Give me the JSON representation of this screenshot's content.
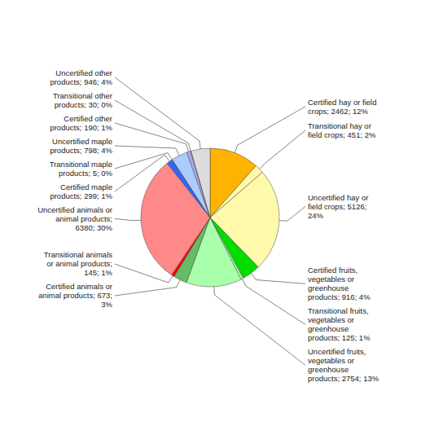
{
  "chart_data": {
    "type": "pie",
    "categories": [
      "Certified hay or field\ncrops; 2462; 12%",
      "Transitional hay or\nfield crops; 451; 2%",
      "Uncertified hay or\nfield crops; 5126;\n24%",
      "Certified fruits,\nvegetables or\ngreenhouse\nproducts; 916; 4%",
      "Transitional fruits,\nvegetables or\ngreenhouse\nproducts; 125; 1%",
      "Uncertified fruits,\nvegetables or\ngreenhouse\nproducts; 2754; 13%",
      "Certified animals or\nanimal products; 673;\n3%",
      "Transitional animals\nor animal products;\n145; 1%",
      "Uncertified animals or\nanimal products;\n6380; 30%",
      "Certified maple\nproducts; 299; 1%",
      "Transitional maple\nproducts; 5; 0%",
      "Uncertified maple\nproducts; 798; 4%",
      "Certified other\nproducts; 190; 1%",
      "Transitional other\nproducts; 30; 0%",
      "Uncertified other\nproducts; 946; 4%"
    ],
    "values": [
      2462,
      451,
      5126,
      916,
      125,
      2754,
      673,
      145,
      6380,
      299,
      5,
      798,
      190,
      30,
      946
    ],
    "colors": [
      "#FFB300",
      "#FFFAAA",
      "#FFFAAA",
      "#00DD00",
      "#AAFFAA",
      "#AAFFAA",
      "#66BB66",
      "#FF0000",
      "#FF8888",
      "#3366FF",
      "#999999",
      "#AACCFF",
      "#AAAAEE",
      "#BBBBBB",
      "#DDDDDD"
    ]
  }
}
